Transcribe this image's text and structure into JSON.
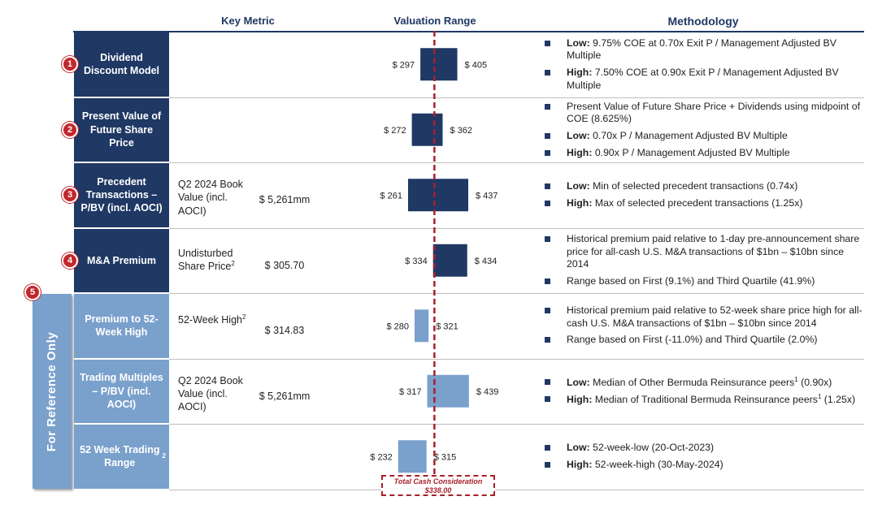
{
  "headers": {
    "metric": "Key Metric",
    "range": "Valuation Range",
    "method": "Methodology"
  },
  "reference_label": "For Reference Only",
  "reference_number": "5",
  "colors": {
    "dark": "#1f3864",
    "light": "#7aa0cc",
    "accent": "#c0282d",
    "reference_line": "#a8202a"
  },
  "rows": [
    {
      "number": "1",
      "label": "Dividend Discount Model",
      "metric_label": "",
      "metric_value": "",
      "low_label": "$ 297",
      "high_label": "$ 405",
      "style": "dark",
      "methodology": [
        {
          "bold": "Low:",
          "text": " 9.75% COE at 0.70x Exit P / Management Adjusted BV Multiple"
        },
        {
          "bold": "High:",
          "text": " 7.50% COE at 0.90x Exit P / Management Adjusted BV Multiple"
        }
      ]
    },
    {
      "number": "2",
      "label": "Present Value of Future Share Price",
      "metric_label": "",
      "metric_value": "",
      "low_label": "$ 272",
      "high_label": "$ 362",
      "style": "dark",
      "methodology": [
        {
          "bold": "",
          "text": "Present Value of Future Share Price + Dividends using midpoint of COE (8.625%)"
        },
        {
          "bold": "Low:",
          "text": " 0.70x P / Management Adjusted BV Multiple"
        },
        {
          "bold": "High:",
          "text": " 0.90x P / Management Adjusted BV Multiple"
        }
      ]
    },
    {
      "number": "3",
      "label": "Precedent Transactions – P/BV (incl. AOCI)",
      "metric_label": "Q2 2024 Book Value (incl. AOCI)",
      "metric_value": "$ 5,261mm",
      "low_label": "$ 261",
      "high_label": "$ 437",
      "style": "dark",
      "methodology": [
        {
          "bold": "Low:",
          "text": " Min of selected precedent transactions (0.74x)"
        },
        {
          "bold": "High:",
          "text": " Max of selected precedent transactions (1.25x)"
        }
      ]
    },
    {
      "number": "4",
      "label": "M&A Premium",
      "metric_label": "Undisturbed Share Price",
      "metric_sup": "2",
      "metric_value": "$ 305.70",
      "low_label": "$ 334",
      "high_label": "$ 434",
      "style": "dark",
      "methodology": [
        {
          "bold": "",
          "text": "Historical premium paid relative to 1-day pre-announcement share price for all-cash U.S. M&A transactions of $1bn – $10bn since 2014"
        },
        {
          "bold": "",
          "text": "Range based on First (9.1%) and Third Quartile (41.9%)"
        }
      ]
    },
    {
      "number": "",
      "label": "Premium to 52-Week High",
      "metric_label": "52-Week High",
      "metric_sup": "2",
      "metric_value": "$ 314.83",
      "low_label": "$ 280",
      "high_label": "$ 321",
      "style": "light",
      "methodology": [
        {
          "bold": "",
          "text": "Historical premium paid relative to 52-week share price high for all-cash U.S. M&A transactions of $1bn – $10bn since 2014"
        },
        {
          "bold": "",
          "text": "Range based on First (-11.0%) and Third Quartile (2.0%)"
        }
      ]
    },
    {
      "number": "",
      "label": "Trading Multiples – P/BV (incl. AOCI)",
      "metric_label": "Q2 2024 Book Value (incl. AOCI)",
      "metric_value": "$ 5,261mm",
      "low_label": "$ 317",
      "high_label": "$ 439",
      "style": "light",
      "methodology": [
        {
          "bold": "Low:",
          "text": " Median of Other Bermuda Reinsurance peers",
          "sup": "1",
          "after": " (0.90x)"
        },
        {
          "bold": "High:",
          "text": " Median of Traditional Bermuda Reinsurance peers",
          "sup": "1",
          "after": " (1.25x)"
        }
      ]
    },
    {
      "number": "",
      "label": "52 Week Trading Range",
      "label_sup": "2",
      "metric_label": "",
      "metric_value": "",
      "low_label": "$ 232",
      "high_label": "$ 315",
      "style": "light",
      "methodology": [
        {
          "bold": "Low:",
          "text": " 52-week-low (20-Oct-2023)"
        },
        {
          "bold": "High:",
          "text": " 52-week-high (30-May-2024)"
        }
      ]
    }
  ],
  "chart_data": {
    "type": "bar",
    "orientation": "horizontal-floating",
    "categories": [
      "Dividend Discount Model",
      "Present Value of Future Share Price",
      "Precedent Transactions – P/BV (incl. AOCI)",
      "M&A Premium",
      "Premium to 52-Week High",
      "Trading Multiples – P/BV (incl. AOCI)",
      "52 Week Trading Range"
    ],
    "low": [
      297,
      272,
      261,
      334,
      280,
      317,
      232
    ],
    "high": [
      405,
      362,
      437,
      434,
      321,
      439,
      315
    ],
    "xlim": [
      200,
      460
    ],
    "reference_line": {
      "value": 338.0,
      "label": "Total Cash Consideration",
      "value_label": "$338.00"
    }
  }
}
